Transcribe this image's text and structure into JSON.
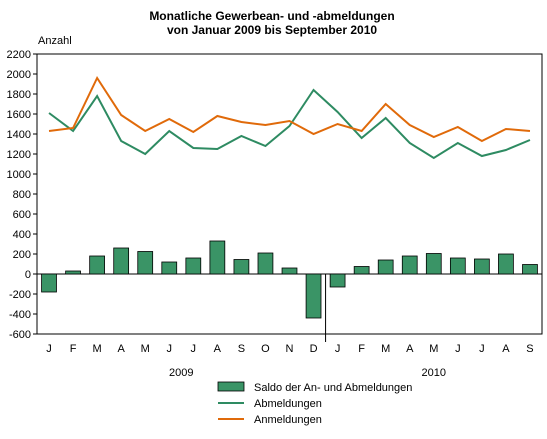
{
  "chart_data": {
    "type": "bar+line",
    "title": "Monatliche Gewerbean- und -abmeldungen",
    "subtitle": "von Januar 2009 bis September 2010",
    "ylabel": "Anzahl",
    "ylim": [
      -600,
      2200
    ],
    "yticks": [
      -600,
      -400,
      -200,
      0,
      200,
      400,
      600,
      800,
      1000,
      1200,
      1400,
      1600,
      1800,
      2000,
      2200
    ],
    "grid": false,
    "legend_position": "bottom",
    "categories": [
      "J",
      "F",
      "M",
      "A",
      "M",
      "J",
      "J",
      "A",
      "S",
      "O",
      "N",
      "D",
      "J",
      "F",
      "M",
      "A",
      "M",
      "J",
      "J",
      "A",
      "S"
    ],
    "year_groups": [
      {
        "label": "2009",
        "start": 0,
        "end": 11
      },
      {
        "label": "2010",
        "start": 12,
        "end": 20
      }
    ],
    "series": [
      {
        "name": "Saldo der An- und Abmeldungen",
        "kind": "bar",
        "color": "#3a9466",
        "values": [
          -180,
          30,
          180,
          260,
          225,
          120,
          160,
          330,
          145,
          210,
          60,
          -440,
          -130,
          75,
          140,
          180,
          205,
          160,
          150,
          200,
          95
        ]
      },
      {
        "name": "Abmeldungen",
        "kind": "line",
        "color": "#2e8b62",
        "values": [
          1610,
          1430,
          1780,
          1330,
          1200,
          1430,
          1260,
          1250,
          1380,
          1280,
          1480,
          1840,
          1620,
          1360,
          1560,
          1310,
          1160,
          1310,
          1180,
          1240,
          1340
        ]
      },
      {
        "name": "Anmeldungen",
        "kind": "line",
        "color": "#e06a0a",
        "values": [
          1430,
          1460,
          1960,
          1590,
          1430,
          1550,
          1420,
          1580,
          1520,
          1490,
          1530,
          1400,
          1500,
          1430,
          1700,
          1490,
          1370,
          1470,
          1330,
          1450,
          1430
        ]
      }
    ]
  }
}
